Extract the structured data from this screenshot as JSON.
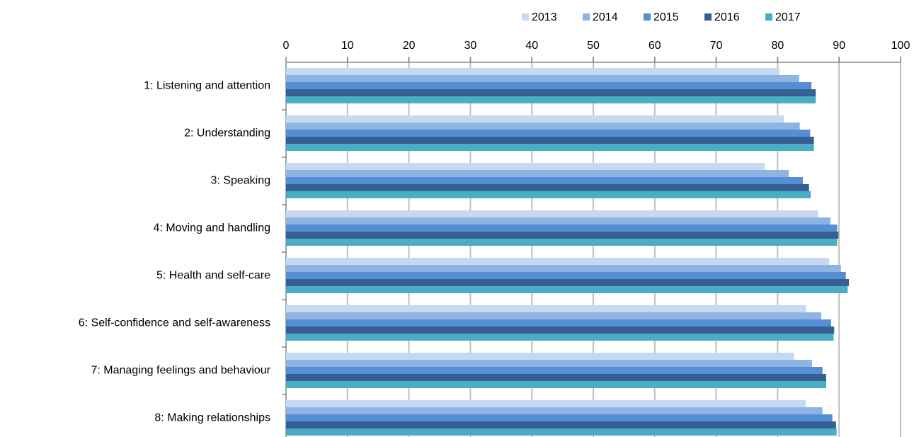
{
  "chart_data": {
    "type": "bar",
    "orientation": "horizontal",
    "categories": [
      "1: Listening and attention",
      "2: Understanding",
      "3: Speaking",
      "4: Moving and handling",
      "5: Health and self-care",
      "6: Self-confidence and self-awareness",
      "7: Managing feelings and behaviour",
      "8: Making relationships"
    ],
    "series": [
      {
        "name": "2013",
        "color": "#c6d9f1",
        "values": [
          80.3,
          81.0,
          77.9,
          86.6,
          88.4,
          84.6,
          82.7,
          84.6
        ]
      },
      {
        "name": "2014",
        "color": "#8eb4e3",
        "values": [
          83.5,
          83.6,
          81.8,
          88.6,
          90.3,
          87.1,
          85.6,
          87.3
        ]
      },
      {
        "name": "2015",
        "color": "#558ed5",
        "values": [
          85.5,
          85.3,
          84.1,
          89.7,
          91.1,
          88.7,
          87.3,
          88.9
        ]
      },
      {
        "name": "2016",
        "color": "#376092",
        "values": [
          86.2,
          85.9,
          85.1,
          89.9,
          91.6,
          89.2,
          87.9,
          89.5
        ]
      },
      {
        "name": "2017",
        "color": "#4bacc6",
        "values": [
          86.2,
          85.9,
          85.4,
          89.7,
          91.4,
          89.1,
          87.9,
          89.6
        ]
      }
    ],
    "xlim": [
      0,
      100
    ],
    "xticks": [
      0,
      10,
      20,
      30,
      40,
      50,
      60,
      70,
      80,
      90,
      100
    ],
    "grid": true,
    "legend": "top"
  }
}
